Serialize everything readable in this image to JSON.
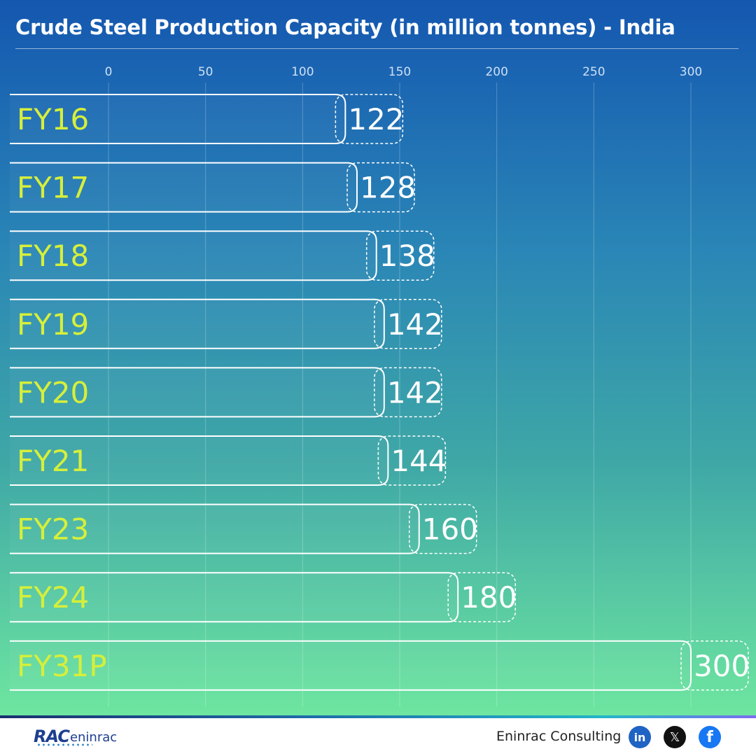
{
  "title": "Crude Steel Production Capacity (in million tonnes) - India",
  "colors": {
    "bar_outline": "#ffffff",
    "category_label": "#d6ef3a",
    "value_label": "#ffffff",
    "tick_label": "#cfe0f5",
    "gridline": "rgba(255,255,255,0.25)"
  },
  "chart_data": {
    "type": "bar",
    "orientation": "horizontal",
    "categories": [
      "FY16",
      "FY17",
      "FY18",
      "FY19",
      "FY20",
      "FY21",
      "FY23",
      "FY24",
      "FY31P"
    ],
    "values": [
      122,
      128,
      138,
      142,
      142,
      144,
      160,
      180,
      300
    ],
    "value_labels": [
      "122",
      "128",
      "138",
      "142",
      "142",
      "144",
      "160",
      "180",
      "300"
    ],
    "xticks": [
      0,
      50,
      100,
      150,
      200,
      250,
      300
    ],
    "xlim": [
      0,
      300
    ],
    "xlabel": "",
    "ylabel": "",
    "grid": true,
    "legend": "none"
  },
  "footer": {
    "logo_main": "RAC",
    "logo_sub": "eninrac",
    "company": "Eninrac Consulting",
    "social": [
      {
        "name": "linkedin-icon",
        "glyph": "in"
      },
      {
        "name": "x-icon",
        "glyph": "𝕏"
      },
      {
        "name": "facebook-icon",
        "glyph": "f"
      }
    ]
  }
}
